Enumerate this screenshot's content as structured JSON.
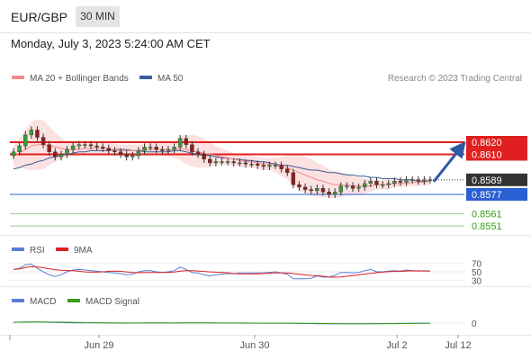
{
  "header": {
    "pair": "EUR/GBP",
    "timeframe": "30 MIN"
  },
  "datetime": "Monday, July 3, 2023 5:24:00 AM CET",
  "legend_main": [
    {
      "label": "MA 20 + Bollinger Bands",
      "color": "#f28b8b"
    },
    {
      "label": "MA 50",
      "color": "#3b5c9a"
    }
  ],
  "credit": "Research © 2023 Trading Central",
  "legend_rsi": [
    {
      "label": "RSI",
      "color": "#5b7ed6"
    },
    {
      "label": "9MA",
      "color": "#e02020"
    }
  ],
  "legend_macd": [
    {
      "label": "MACD",
      "color": "#5b7ed6"
    },
    {
      "label": "MACD Signal",
      "color": "#3a9a1a"
    }
  ],
  "chart_data": {
    "type": "line",
    "price_range": [
      0.8543,
      0.8633
    ],
    "levels": [
      {
        "value": 0.862,
        "label": "0.8620",
        "kind": "resistance",
        "color": "#e02020"
      },
      {
        "value": 0.861,
        "label": "0.8610",
        "kind": "resistance",
        "color": "#e02020"
      },
      {
        "value": 0.8589,
        "label": "0.8589",
        "kind": "last",
        "color": "#333333"
      },
      {
        "value": 0.8577,
        "label": "0.8577",
        "kind": "pivot",
        "color": "#2a5fd4"
      },
      {
        "value": 0.8561,
        "label": "0.8561",
        "kind": "support",
        "color": "#3a9a1a"
      },
      {
        "value": 0.8551,
        "label": "0.8551",
        "kind": "support",
        "color": "#3a9a1a"
      }
    ],
    "close": [
      0.8612,
      0.8617,
      0.8626,
      0.863,
      0.8624,
      0.8618,
      0.8612,
      0.8608,
      0.861,
      0.8614,
      0.8617,
      0.8618,
      0.8618,
      0.8617,
      0.8616,
      0.8615,
      0.8613,
      0.8612,
      0.861,
      0.8608,
      0.8609,
      0.8613,
      0.8616,
      0.8616,
      0.8614,
      0.8613,
      0.8614,
      0.8616,
      0.8623,
      0.8618,
      0.8612,
      0.861,
      0.8606,
      0.8603,
      0.8604,
      0.8604,
      0.8604,
      0.8603,
      0.8603,
      0.8602,
      0.8602,
      0.8601,
      0.86,
      0.8601,
      0.8601,
      0.8598,
      0.8595,
      0.8585,
      0.8583,
      0.8581,
      0.858,
      0.8582,
      0.8579,
      0.8577,
      0.8579,
      0.8584,
      0.8584,
      0.8582,
      0.8583,
      0.8586,
      0.8588,
      0.8585,
      0.8585,
      0.8586,
      0.8588,
      0.8587,
      0.8589,
      0.8589,
      0.8588,
      0.8589,
      0.8589
    ],
    "ma50": [
      0.8598,
      0.8599,
      0.8601,
      0.8602,
      0.8604,
      0.8605,
      0.8607,
      0.8608,
      0.8609,
      0.861,
      0.8611,
      0.8612,
      0.8612,
      0.8613,
      0.8613,
      0.8613,
      0.8613,
      0.8614,
      0.8614,
      0.8614,
      0.8613,
      0.8613,
      0.8612,
      0.8612,
      0.8612,
      0.8612,
      0.8612,
      0.8613,
      0.8613,
      0.8612,
      0.8611,
      0.861,
      0.8609,
      0.8609,
      0.8608,
      0.8607,
      0.8607,
      0.8606,
      0.8606,
      0.8605,
      0.8605,
      0.8604,
      0.8604,
      0.8603,
      0.8602,
      0.8601,
      0.8601,
      0.86,
      0.8599,
      0.8598,
      0.8597,
      0.8597,
      0.8596,
      0.8595,
      0.8595,
      0.8594,
      0.8593,
      0.8593,
      0.8592,
      0.8592,
      0.8591,
      0.8591,
      0.859,
      0.859,
      0.859,
      0.8589,
      0.8589,
      0.8589,
      0.8588,
      0.8588,
      0.8588
    ],
    "ma20": [
      0.8608,
      0.8611,
      0.8614,
      0.8617,
      0.8618,
      0.8618,
      0.8617,
      0.8616,
      0.8615,
      0.8614,
      0.8614,
      0.8614,
      0.8615,
      0.8615,
      0.8615,
      0.8615,
      0.8614,
      0.8614,
      0.8613,
      0.8613,
      0.8613,
      0.8613,
      0.8614,
      0.8614,
      0.8614,
      0.8614,
      0.8614,
      0.8614,
      0.8615,
      0.8614,
      0.8613,
      0.8612,
      0.8611,
      0.861,
      0.8609,
      0.8608,
      0.8607,
      0.8606,
      0.8605,
      0.8604,
      0.8604,
      0.8603,
      0.8602,
      0.8602,
      0.8601,
      0.86,
      0.8599,
      0.8597,
      0.8595,
      0.8593,
      0.8591,
      0.8589,
      0.8588,
      0.8586,
      0.8585,
      0.8585,
      0.8585,
      0.8584,
      0.8584,
      0.8584,
      0.8584,
      0.8585,
      0.8585,
      0.8585,
      0.8586,
      0.8586,
      0.8586,
      0.8587,
      0.8587,
      0.8587,
      0.8588
    ],
    "band_width": [
      0.0008,
      0.0012,
      0.0016,
      0.002,
      0.0021,
      0.002,
      0.0016,
      0.0012,
      0.0009,
      0.0006,
      0.0005,
      0.0005,
      0.0005,
      0.0005,
      0.0005,
      0.0005,
      0.0005,
      0.0005,
      0.0005,
      0.0005,
      0.0005,
      0.0005,
      0.0005,
      0.0005,
      0.0005,
      0.0005,
      0.0006,
      0.0007,
      0.001,
      0.0012,
      0.0013,
      0.0013,
      0.0012,
      0.001,
      0.0008,
      0.0007,
      0.0006,
      0.0005,
      0.0005,
      0.0005,
      0.0005,
      0.0005,
      0.0005,
      0.0005,
      0.0006,
      0.0008,
      0.001,
      0.0013,
      0.0015,
      0.0015,
      0.0015,
      0.0014,
      0.0013,
      0.0012,
      0.0011,
      0.001,
      0.0009,
      0.0008,
      0.0007,
      0.0006,
      0.0005,
      0.0004,
      0.0004,
      0.0004,
      0.0003,
      0.0003,
      0.0003,
      0.0003,
      0.0003,
      0.0003,
      0.0003
    ],
    "forecast_arrow": {
      "from": 0.8589,
      "to": 0.862
    },
    "rsi": {
      "ticks": [
        "70",
        "50",
        "30"
      ],
      "range": [
        20,
        80
      ]
    },
    "macd": {
      "ticks": [
        "0"
      ]
    },
    "x_ticks": [
      "Jun 29",
      "Jun 30",
      "Jul 2",
      "Jul 12"
    ]
  }
}
